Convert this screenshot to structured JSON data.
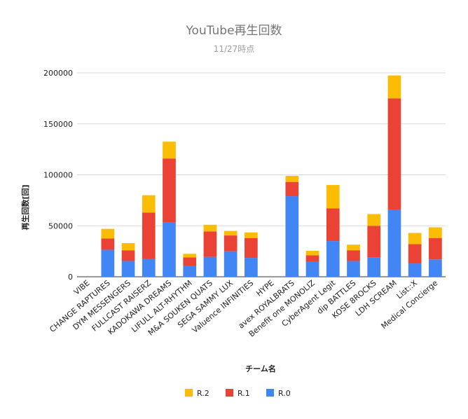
{
  "chart_data": {
    "type": "bar",
    "stacked": true,
    "title": "YouTube再生回数",
    "subtitle": "11/27時点",
    "xlabel": "チーム名",
    "ylabel": "再生回数[回]",
    "ylim": [
      0,
      200000
    ],
    "yticks": [
      0,
      50000,
      100000,
      150000,
      200000
    ],
    "ytick_labels": [
      "0",
      "50000",
      "100000",
      "150000",
      "200000"
    ],
    "grid": true,
    "legend_position": "bottom",
    "categories": [
      "VIBE",
      "CHANGE RAPTURES",
      "DYM MESSENGERS",
      "FULLCAST RAISERZ",
      "KADOKAWA DREAMS",
      "LIFULL ALT-RHYTHM",
      "M&A SOUKEN QUATS",
      "SEGA SAMMY LUX",
      "Valuence INFINITIES",
      "HYPE",
      "avex ROYALBRATS",
      "Benefit one MONOLIZ",
      "CyberAgent Legit",
      "dip BATTLES",
      "KOSE 8ROCKS",
      "LDH SCREAM",
      "List::X",
      "Medical Concierge"
    ],
    "series": [
      {
        "name": "R.0",
        "color": "#4285f4",
        "values": [
          0,
          26500,
          15500,
          17500,
          53000,
          11000,
          19500,
          25000,
          18500,
          0,
          79000,
          14500,
          35000,
          15500,
          19000,
          66000,
          13000,
          17000
        ]
      },
      {
        "name": "R.1",
        "color": "#ea4335",
        "values": [
          0,
          11000,
          10500,
          45500,
          63000,
          8000,
          25000,
          15500,
          19500,
          0,
          14000,
          6500,
          32000,
          10500,
          31000,
          109000,
          19000,
          21000
        ]
      },
      {
        "name": "R.2",
        "color": "#fbbc04",
        "values": [
          0,
          9500,
          7000,
          17000,
          16500,
          3500,
          6500,
          4500,
          5500,
          0,
          6000,
          4500,
          23000,
          5500,
          11500,
          22500,
          11000,
          10500
        ]
      }
    ],
    "legend_order": [
      "R.2",
      "R.1",
      "R.0"
    ]
  }
}
